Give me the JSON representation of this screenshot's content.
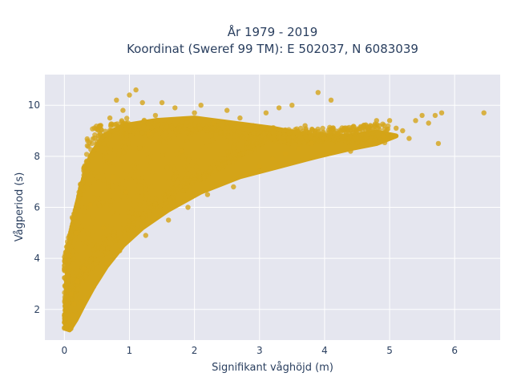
{
  "chart_data": {
    "type": "scatter",
    "title_lines": [
      "År 1979 - 2019",
      "Koordinat (Sweref 99 TM): E 502037, N 6083039"
    ],
    "xlabel": "Signifikant våghöjd (m)",
    "ylabel": "Vågperiod (s)",
    "xlim": [
      -0.3,
      6.7
    ],
    "ylim": [
      0.8,
      11.2
    ],
    "x_ticks": [
      0,
      1,
      2,
      3,
      4,
      5,
      6
    ],
    "x_tick_labels": [
      "0",
      "1",
      "2",
      "3",
      "4",
      "5",
      "6"
    ],
    "y_ticks": [
      2,
      4,
      6,
      8,
      10
    ],
    "y_tick_labels": [
      "2",
      "4",
      "6",
      "8",
      "10"
    ],
    "grid": true,
    "colors": {
      "marker": "#d4a418",
      "plot_background": "#e5e6ef",
      "grid": "#ffffff",
      "text": "#2a3f5f"
    },
    "series": [
      {
        "points": [
          [
            0.05,
            1.35
          ],
          [
            0.08,
            1.5
          ],
          [
            0.1,
            1.25
          ],
          [
            0.12,
            1.8
          ],
          [
            0.15,
            2.2
          ],
          [
            0.1,
            2.6
          ],
          [
            0.05,
            3.3
          ],
          [
            0.08,
            4.1
          ],
          [
            0.12,
            5.6
          ],
          [
            0.18,
            5.0
          ],
          [
            0.2,
            3.1
          ],
          [
            0.25,
            2.3
          ],
          [
            0.3,
            3.6
          ],
          [
            0.35,
            7.4
          ],
          [
            0.4,
            6.1
          ],
          [
            0.45,
            2.9
          ],
          [
            0.5,
            8.3
          ],
          [
            0.55,
            9.2
          ],
          [
            0.6,
            5.2
          ],
          [
            0.65,
            3.8
          ],
          [
            0.7,
            9.5
          ],
          [
            0.75,
            7.2
          ],
          [
            0.8,
            10.2
          ],
          [
            0.85,
            4.3
          ],
          [
            0.9,
            9.8
          ],
          [
            0.95,
            6.6
          ],
          [
            1.0,
            10.4
          ],
          [
            1.1,
            10.6
          ],
          [
            1.2,
            10.1
          ],
          [
            1.25,
            4.9
          ],
          [
            1.3,
            8.9
          ],
          [
            1.4,
            9.6
          ],
          [
            1.5,
            10.1
          ],
          [
            1.6,
            5.5
          ],
          [
            1.7,
            9.9
          ],
          [
            1.8,
            8.2
          ],
          [
            1.9,
            6.0
          ],
          [
            2.0,
            9.7
          ],
          [
            2.1,
            10.0
          ],
          [
            2.2,
            6.5
          ],
          [
            2.3,
            9.3
          ],
          [
            2.4,
            7.0
          ],
          [
            2.5,
            9.8
          ],
          [
            2.6,
            6.8
          ],
          [
            2.7,
            9.5
          ],
          [
            2.8,
            7.3
          ],
          [
            2.9,
            9.2
          ],
          [
            3.0,
            7.6
          ],
          [
            3.1,
            9.7
          ],
          [
            3.2,
            7.9
          ],
          [
            3.3,
            9.9
          ],
          [
            3.4,
            8.1
          ],
          [
            3.5,
            10.0
          ],
          [
            3.6,
            8.3
          ],
          [
            3.7,
            9.2
          ],
          [
            3.8,
            8.5
          ],
          [
            3.9,
            10.5
          ],
          [
            4.0,
            8.7
          ],
          [
            4.1,
            10.2
          ],
          [
            4.2,
            8.9
          ],
          [
            4.3,
            9.1
          ],
          [
            4.4,
            8.2
          ],
          [
            4.5,
            9.0
          ],
          [
            4.6,
            9.2
          ],
          [
            4.7,
            8.6
          ],
          [
            4.8,
            9.4
          ],
          [
            4.9,
            8.8
          ],
          [
            5.0,
            9.4
          ],
          [
            5.1,
            9.1
          ],
          [
            5.2,
            9.0
          ],
          [
            5.3,
            8.7
          ],
          [
            5.4,
            9.4
          ],
          [
            5.5,
            9.6
          ],
          [
            5.6,
            9.3
          ],
          [
            5.7,
            9.6
          ],
          [
            5.75,
            8.5
          ],
          [
            5.8,
            9.7
          ],
          [
            6.45,
            9.7
          ]
        ]
      }
    ]
  }
}
